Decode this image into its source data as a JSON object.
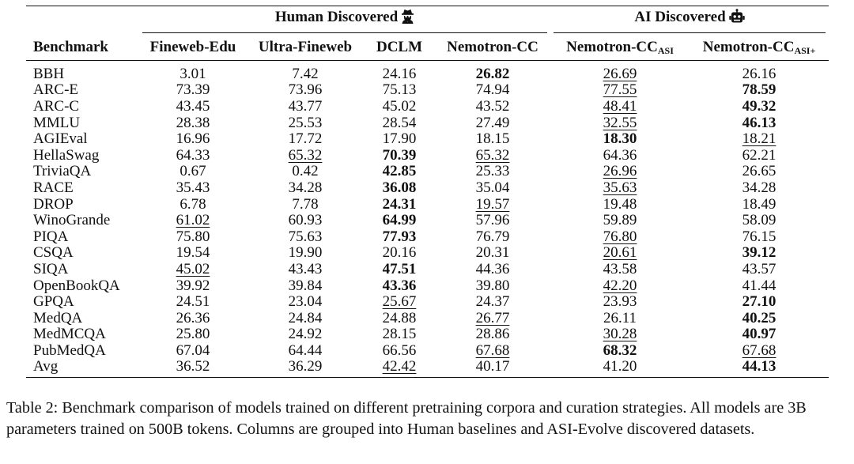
{
  "groups": {
    "human": "Human Discovered",
    "ai": "AI Discovered"
  },
  "icons": {
    "human": "user-secret-icon",
    "ai": "robot-icon"
  },
  "columns": {
    "benchmark": "Benchmark",
    "fineweb_edu": "Fineweb-Edu",
    "ultra_fineweb": "Ultra-Fineweb",
    "dclm": "DCLM",
    "nemotron_cc": "Nemotron-CC",
    "nemotron_asi": {
      "base": "Nemotron-CC",
      "sub": "ASI"
    },
    "nemotron_asi_plus": {
      "base": "Nemotron-CC",
      "sub": "ASI+"
    }
  },
  "rows": [
    {
      "name": "BBH",
      "v": [
        "3.01",
        "7.42",
        "24.16",
        "26.82",
        "26.69",
        "26.16"
      ],
      "bold": [
        3
      ],
      "under": [
        4
      ]
    },
    {
      "name": "ARC-E",
      "v": [
        "73.39",
        "73.96",
        "75.13",
        "74.94",
        "77.55",
        "78.59"
      ],
      "bold": [
        5
      ],
      "under": [
        4
      ]
    },
    {
      "name": "ARC-C",
      "v": [
        "43.45",
        "43.77",
        "45.02",
        "43.52",
        "48.41",
        "49.32"
      ],
      "bold": [
        5
      ],
      "under": [
        4
      ]
    },
    {
      "name": "MMLU",
      "v": [
        "28.38",
        "25.53",
        "28.54",
        "27.49",
        "32.55",
        "46.13"
      ],
      "bold": [
        5
      ],
      "under": [
        4
      ]
    },
    {
      "name": "AGIEval",
      "v": [
        "16.96",
        "17.72",
        "17.90",
        "18.15",
        "18.30",
        "18.21"
      ],
      "bold": [
        4
      ],
      "under": [
        5
      ]
    },
    {
      "name": "HellaSwag",
      "v": [
        "64.33",
        "65.32",
        "70.39",
        "65.32",
        "64.36",
        "62.21"
      ],
      "bold": [
        2
      ],
      "under": [
        1,
        3
      ]
    },
    {
      "name": "TriviaQA",
      "v": [
        "0.67",
        "0.42",
        "42.85",
        "25.33",
        "26.96",
        "26.65"
      ],
      "bold": [
        2
      ],
      "under": [
        4
      ]
    },
    {
      "name": "RACE",
      "v": [
        "35.43",
        "34.28",
        "36.08",
        "35.04",
        "35.63",
        "34.28"
      ],
      "bold": [
        2
      ],
      "under": [
        4
      ]
    },
    {
      "name": "DROP",
      "v": [
        "6.78",
        "7.78",
        "24.31",
        "19.57",
        "19.48",
        "18.49"
      ],
      "bold": [
        2
      ],
      "under": [
        3
      ]
    },
    {
      "name": "WinoGrande",
      "v": [
        "61.02",
        "60.93",
        "64.99",
        "57.96",
        "59.89",
        "58.09"
      ],
      "bold": [
        2
      ],
      "under": [
        0
      ]
    },
    {
      "name": "PIQA",
      "v": [
        "75.80",
        "75.63",
        "77.93",
        "76.79",
        "76.80",
        "76.15"
      ],
      "bold": [
        2
      ],
      "under": [
        4
      ]
    },
    {
      "name": "CSQA",
      "v": [
        "19.54",
        "19.90",
        "20.16",
        "20.31",
        "20.61",
        "39.12"
      ],
      "bold": [
        5
      ],
      "under": [
        4
      ]
    },
    {
      "name": "SIQA",
      "v": [
        "45.02",
        "43.43",
        "47.51",
        "44.36",
        "43.58",
        "43.57"
      ],
      "bold": [
        2
      ],
      "under": [
        0
      ]
    },
    {
      "name": "OpenBookQA",
      "v": [
        "39.92",
        "39.84",
        "43.36",
        "39.80",
        "42.20",
        "41.44"
      ],
      "bold": [
        2
      ],
      "under": [
        4
      ]
    },
    {
      "name": "GPQA",
      "v": [
        "24.51",
        "23.04",
        "25.67",
        "24.37",
        "23.93",
        "27.10"
      ],
      "bold": [
        5
      ],
      "under": [
        2
      ]
    },
    {
      "name": "MedQA",
      "v": [
        "26.36",
        "24.84",
        "24.88",
        "26.77",
        "26.11",
        "40.25"
      ],
      "bold": [
        5
      ],
      "under": [
        3
      ]
    },
    {
      "name": "MedMCQA",
      "v": [
        "25.80",
        "24.92",
        "28.15",
        "28.86",
        "30.28",
        "40.97"
      ],
      "bold": [
        5
      ],
      "under": [
        4
      ]
    },
    {
      "name": "PubMedQA",
      "v": [
        "67.04",
        "64.44",
        "66.56",
        "67.68",
        "68.32",
        "67.68"
      ],
      "bold": [
        4
      ],
      "under": [
        3,
        5
      ]
    },
    {
      "name": "Avg",
      "v": [
        "36.52",
        "36.29",
        "42.42",
        "40.17",
        "41.20",
        "44.13"
      ],
      "bold": [
        5
      ],
      "under": [
        2
      ]
    }
  ],
  "caption": "Table 2: Benchmark comparison of models trained on different pretraining corpora and curation strategies. All models are 3B parameters trained on 500B tokens. Columns are grouped into Human baselines and ASI-Evolve discovered datasets."
}
